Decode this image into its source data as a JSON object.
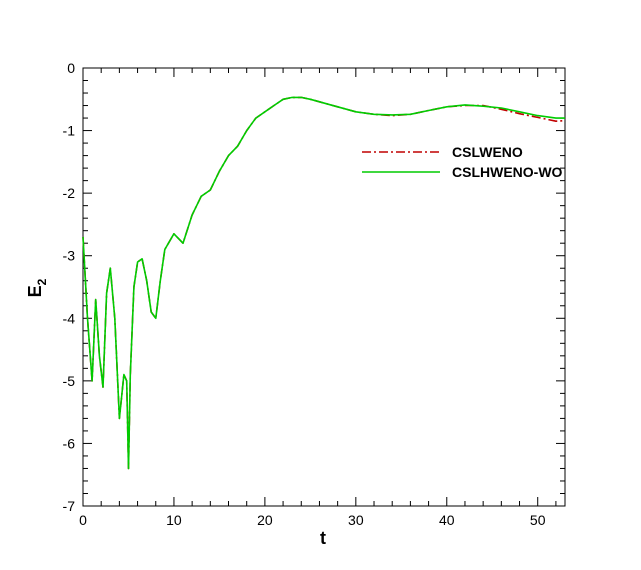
{
  "chart_data": {
    "type": "line",
    "xlabel": "t",
    "ylabel": "E",
    "ylabel_subscript": "2",
    "xlim": [
      0,
      53
    ],
    "ylim": [
      -7,
      0
    ],
    "xticks": [
      0,
      10,
      20,
      30,
      40,
      50
    ],
    "yticks": [
      0,
      -1,
      -2,
      -3,
      -4,
      -5,
      -6,
      -7
    ],
    "grid": false,
    "legend_position": "right",
    "series": [
      {
        "name": "CSLWENO",
        "color": "#c00000",
        "dash": "dash-dot",
        "x": [
          0,
          0.5,
          1.0,
          1.4,
          1.8,
          2.2,
          2.6,
          3.0,
          3.5,
          4.0,
          4.5,
          4.8,
          5.0,
          5.2,
          5.4,
          5.6,
          6.0,
          6.5,
          7.0,
          7.5,
          8.0,
          8.5,
          9.0,
          10.0,
          11.0,
          12.0,
          13.0,
          14.0,
          15.0,
          16.0,
          17.0,
          18.0,
          19.0,
          20.0,
          21.0,
          22.0,
          23.0,
          24.0,
          25.0,
          26.0,
          27.0,
          28.0,
          30.0,
          32.0,
          34.0,
          36.0,
          38.0,
          40.0,
          42.0,
          44.0,
          46.0,
          48.0,
          50.0,
          52.0,
          53.0
        ],
        "y": [
          -2.7,
          -4.0,
          -5.0,
          -3.7,
          -4.6,
          -5.1,
          -3.6,
          -3.2,
          -4.0,
          -5.6,
          -4.9,
          -5.0,
          -6.4,
          -4.9,
          -4.2,
          -3.5,
          -3.1,
          -3.05,
          -3.4,
          -3.9,
          -4.0,
          -3.4,
          -2.9,
          -2.65,
          -2.8,
          -2.35,
          -2.05,
          -1.95,
          -1.65,
          -1.4,
          -1.25,
          -1.0,
          -0.8,
          -0.7,
          -0.6,
          -0.5,
          -0.47,
          -0.47,
          -0.5,
          -0.54,
          -0.58,
          -0.62,
          -0.7,
          -0.74,
          -0.76,
          -0.74,
          -0.68,
          -0.62,
          -0.6,
          -0.6,
          -0.66,
          -0.73,
          -0.79,
          -0.85,
          -0.84
        ]
      },
      {
        "name": "CSLHWENO-WO",
        "color": "#00cc00",
        "dash": "solid",
        "x": [
          0,
          0.5,
          1.0,
          1.4,
          1.8,
          2.2,
          2.6,
          3.0,
          3.5,
          4.0,
          4.5,
          4.8,
          5.0,
          5.2,
          5.4,
          5.6,
          6.0,
          6.5,
          7.0,
          7.5,
          8.0,
          8.5,
          9.0,
          10.0,
          11.0,
          12.0,
          13.0,
          14.0,
          15.0,
          16.0,
          17.0,
          18.0,
          19.0,
          20.0,
          21.0,
          22.0,
          23.0,
          24.0,
          25.0,
          26.0,
          27.0,
          28.0,
          30.0,
          32.0,
          34.0,
          36.0,
          38.0,
          40.0,
          42.0,
          44.0,
          46.0,
          48.0,
          50.0,
          52.0,
          53.0
        ],
        "y": [
          -2.7,
          -4.0,
          -5.0,
          -3.7,
          -4.6,
          -5.1,
          -3.6,
          -3.2,
          -4.0,
          -5.6,
          -4.9,
          -5.0,
          -6.4,
          -4.9,
          -4.2,
          -3.5,
          -3.1,
          -3.05,
          -3.4,
          -3.9,
          -4.0,
          -3.4,
          -2.9,
          -2.65,
          -2.8,
          -2.35,
          -2.05,
          -1.95,
          -1.65,
          -1.4,
          -1.25,
          -1.0,
          -0.8,
          -0.7,
          -0.6,
          -0.5,
          -0.47,
          -0.47,
          -0.5,
          -0.54,
          -0.58,
          -0.62,
          -0.7,
          -0.74,
          -0.75,
          -0.74,
          -0.68,
          -0.62,
          -0.59,
          -0.61,
          -0.64,
          -0.7,
          -0.76,
          -0.8,
          -0.8
        ]
      }
    ]
  }
}
